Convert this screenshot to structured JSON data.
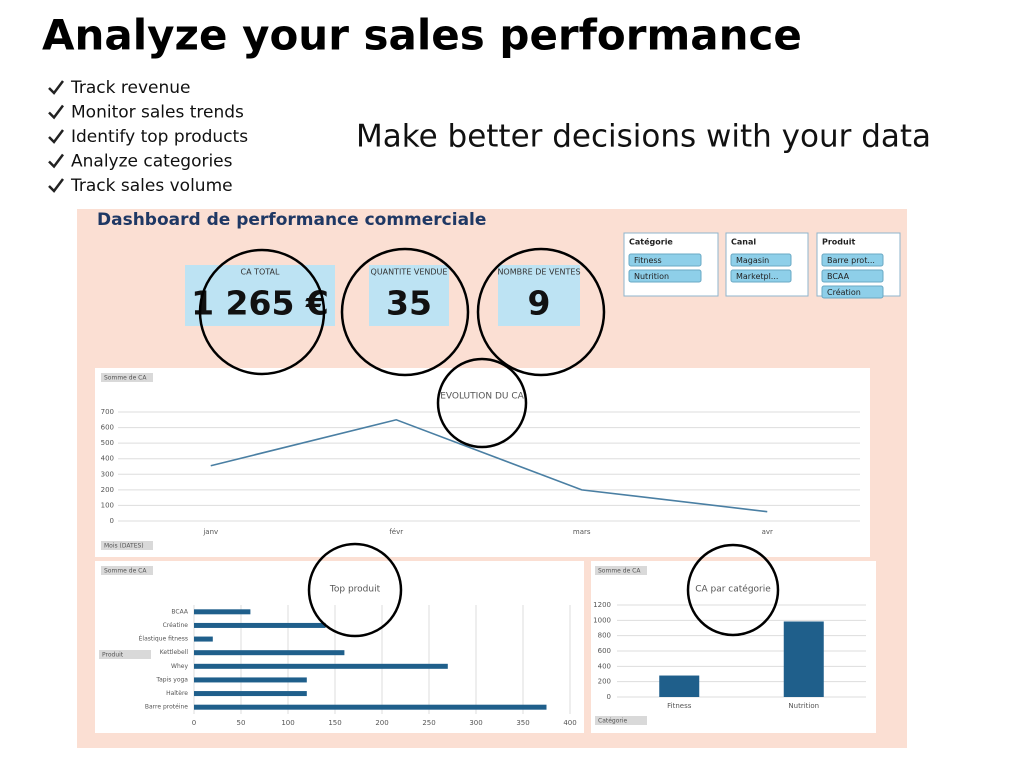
{
  "header": {
    "title": "Analyze your sales performance",
    "tagline": "Make better decisions with your data",
    "bullets": [
      "Track revenue",
      "Monitor sales trends",
      "Identify top products",
      "Analyze categories",
      "Track sales volume"
    ]
  },
  "dashboard": {
    "title": "Dashboard de performance commerciale",
    "kpis": [
      {
        "label": "CA TOTAL",
        "value": "1 265 €"
      },
      {
        "label": "QUANTITE VENDUE",
        "value": "35"
      },
      {
        "label": "NOMBRE DE VENTES",
        "value": "9"
      }
    ],
    "slicers": [
      {
        "title": "Catégorie",
        "items": [
          "Fitness",
          "Nutrition"
        ]
      },
      {
        "title": "Canal",
        "items": [
          "Magasin",
          "Marketpl..."
        ]
      },
      {
        "title": "Produit",
        "items": [
          "Barre prot...",
          "BCAA",
          "Création"
        ]
      }
    ]
  },
  "chart_data": [
    {
      "type": "line",
      "title": "EVOLUTION DU CA",
      "field_button": "Somme de CA",
      "axis_button": "Mois (DATES)",
      "categories": [
        "janv",
        "févr",
        "mars",
        "avr"
      ],
      "values": [
        355,
        650,
        200,
        60
      ],
      "color": "#4a7fa3",
      "ylim": [
        0,
        700
      ],
      "yticks": [
        0,
        100,
        200,
        300,
        400,
        500,
        600,
        700
      ],
      "grid": true
    },
    {
      "type": "bar",
      "orientation": "horizontal",
      "title": "Top produit",
      "field_button": "Somme de CA",
      "axis_button": "Produit",
      "categories": [
        "BCAA",
        "Créatine",
        "Élastique fitness",
        "Kettlebell",
        "Whey",
        "Tapis yoga",
        "Haltère",
        "Barre protéine"
      ],
      "values": [
        60,
        140,
        20,
        160,
        270,
        120,
        120,
        375
      ],
      "color": "#1f5f8b",
      "xlim": [
        0,
        400
      ],
      "xticks": [
        0,
        50,
        100,
        150,
        200,
        250,
        300,
        350,
        400
      ],
      "grid": true
    },
    {
      "type": "bar",
      "orientation": "vertical",
      "title": "CA par catégorie",
      "field_button": "Somme de CA",
      "axis_button": "Catégorie",
      "categories": [
        "Fitness",
        "Nutrition"
      ],
      "values": [
        280,
        985
      ],
      "color": "#1f5f8b",
      "ylim": [
        0,
        1200
      ],
      "yticks": [
        0,
        200,
        400,
        600,
        800,
        1000,
        1200
      ],
      "grid": true
    }
  ]
}
